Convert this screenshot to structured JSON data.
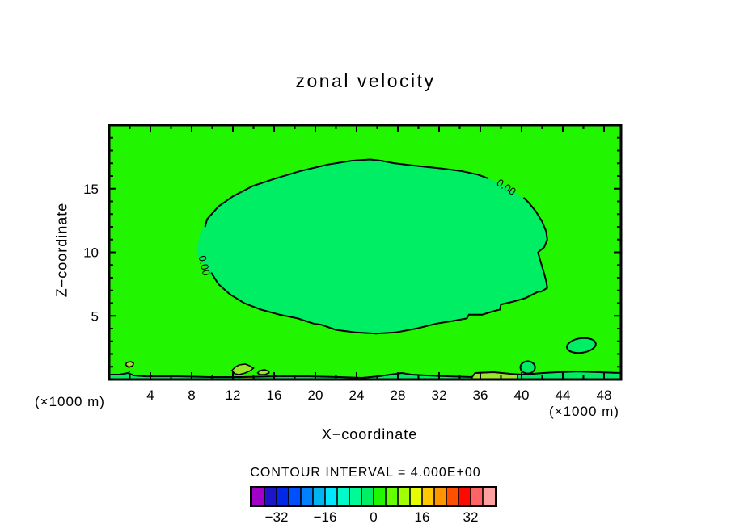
{
  "figure": {
    "title": "zonal velocity",
    "xlabel": "X−coordinate",
    "ylabel": "Z−coordinate",
    "units_left": "(×1000 m)",
    "units_right": "(×1000 m)",
    "contour_interval_label": "CONTOUR INTERVAL = 4.000E+00"
  },
  "chart_data": {
    "type": "heatmap",
    "subtype": "filled-contour-map",
    "title": "zonal velocity",
    "xlabel": "X−coordinate",
    "ylabel": "Z−coordinate",
    "x_units": "(×1000 m)",
    "y_units": "(×1000 m)",
    "x_range": [
      0,
      49.65
    ],
    "y_range": [
      0,
      20
    ],
    "x_ticks_major": [
      4,
      8,
      12,
      16,
      20,
      24,
      28,
      32,
      36,
      40,
      44,
      48
    ],
    "x_ticks_minor": [
      2,
      6,
      10,
      14,
      18,
      22,
      26,
      30,
      34,
      38,
      42,
      46
    ],
    "y_ticks_major": [
      5,
      10,
      15
    ],
    "y_ticks_minor": [
      1,
      2,
      3,
      4,
      6,
      7,
      8,
      9,
      11,
      12,
      13,
      14,
      16,
      17,
      18,
      19
    ],
    "contour_interval": 4.0,
    "contour_label": "0.00",
    "colors": {
      "outer_region": "#22F500",
      "inner_region": "#00EE64",
      "patch_region": "#9CE62C",
      "contour_line": "#000000",
      "text": "#000000"
    },
    "zero_contour_fill": [
      [
        8.5,
        10.2
      ],
      [
        8.8,
        11.4
      ],
      [
        9.5,
        12.6
      ],
      [
        10.6,
        13.6
      ],
      [
        12.0,
        14.4
      ],
      [
        13.9,
        15.2
      ],
      [
        16.1,
        15.8
      ],
      [
        18.6,
        16.4
      ],
      [
        21.2,
        16.9
      ],
      [
        23.5,
        17.2
      ],
      [
        25.3,
        17.3
      ],
      [
        26.4,
        17.2
      ],
      [
        27.7,
        17.0
      ],
      [
        29.8,
        16.8
      ],
      [
        32.2,
        16.6
      ],
      [
        34.1,
        16.4
      ],
      [
        35.8,
        16.1
      ],
      [
        37.1,
        15.7
      ],
      [
        38.4,
        15.2
      ],
      [
        39.7,
        14.5
      ],
      [
        40.7,
        13.9
      ],
      [
        41.4,
        13.2
      ],
      [
        42.0,
        12.4
      ],
      [
        42.4,
        11.6
      ],
      [
        42.5,
        11.0
      ],
      [
        42.2,
        10.4
      ],
      [
        41.6,
        10.0
      ],
      [
        41.8,
        9.4
      ],
      [
        42.1,
        8.6
      ],
      [
        42.4,
        7.7
      ],
      [
        42.5,
        7.2
      ],
      [
        41.9,
        6.9
      ],
      [
        41.6,
        6.9
      ],
      [
        40.4,
        6.4
      ],
      [
        39.1,
        6.1
      ],
      [
        38.0,
        5.9
      ],
      [
        37.9,
        5.5
      ],
      [
        37.0,
        5.3
      ],
      [
        36.2,
        5.1
      ],
      [
        34.9,
        5.1
      ],
      [
        34.7,
        4.8
      ],
      [
        33.3,
        4.6
      ],
      [
        31.8,
        4.4
      ],
      [
        29.8,
        4.0
      ],
      [
        27.8,
        3.7
      ],
      [
        25.9,
        3.6
      ],
      [
        23.9,
        3.7
      ],
      [
        22.0,
        3.9
      ],
      [
        20.6,
        4.3
      ],
      [
        19.8,
        4.4
      ],
      [
        18.3,
        4.8
      ],
      [
        16.5,
        5.1
      ],
      [
        14.7,
        5.5
      ],
      [
        13.1,
        6.0
      ],
      [
        11.7,
        6.7
      ],
      [
        10.6,
        7.5
      ],
      [
        9.7,
        8.3
      ],
      [
        9.1,
        9.1
      ],
      [
        8.6,
        9.7
      ]
    ],
    "zero_contour_stroke_top": [
      [
        9.3,
        12.0
      ],
      [
        9.5,
        12.6
      ],
      [
        10.6,
        13.6
      ],
      [
        12.0,
        14.4
      ],
      [
        13.9,
        15.2
      ],
      [
        16.1,
        15.8
      ],
      [
        18.6,
        16.4
      ],
      [
        21.2,
        16.9
      ],
      [
        23.5,
        17.2
      ],
      [
        25.3,
        17.3
      ],
      [
        26.4,
        17.2
      ],
      [
        27.7,
        17.0
      ],
      [
        29.8,
        16.8
      ],
      [
        32.2,
        16.6
      ],
      [
        34.1,
        16.4
      ],
      [
        35.8,
        16.1
      ],
      [
        36.8,
        15.8
      ]
    ],
    "zero_contour_stroke_bottom": [
      [
        40.2,
        14.3
      ],
      [
        40.7,
        13.9
      ],
      [
        41.4,
        13.2
      ],
      [
        42.0,
        12.4
      ],
      [
        42.4,
        11.6
      ],
      [
        42.5,
        11.0
      ],
      [
        42.2,
        10.4
      ],
      [
        41.6,
        10.0
      ],
      [
        41.8,
        9.4
      ],
      [
        42.1,
        8.6
      ],
      [
        42.4,
        7.7
      ],
      [
        42.5,
        7.2
      ],
      [
        41.9,
        6.9
      ],
      [
        41.6,
        6.9
      ],
      [
        40.4,
        6.4
      ],
      [
        39.1,
        6.1
      ],
      [
        38.0,
        5.9
      ],
      [
        37.9,
        5.5
      ],
      [
        37.0,
        5.3
      ],
      [
        36.2,
        5.1
      ],
      [
        34.9,
        5.1
      ],
      [
        34.7,
        4.8
      ],
      [
        33.3,
        4.6
      ],
      [
        31.8,
        4.4
      ],
      [
        29.8,
        4.0
      ],
      [
        27.8,
        3.7
      ],
      [
        25.9,
        3.6
      ],
      [
        23.9,
        3.7
      ],
      [
        22.0,
        3.9
      ],
      [
        20.6,
        4.3
      ],
      [
        19.8,
        4.4
      ],
      [
        18.3,
        4.8
      ],
      [
        16.5,
        5.1
      ],
      [
        14.7,
        5.5
      ],
      [
        13.1,
        6.0
      ],
      [
        11.7,
        6.7
      ],
      [
        10.6,
        7.5
      ],
      [
        9.9,
        8.4
      ]
    ],
    "contour_line_labels": [
      {
        "x": 9.2,
        "z": 8.95,
        "rotation_deg": 77
      },
      {
        "x": 38.5,
        "z": 15.1,
        "rotation_deg": 34
      }
    ],
    "surface_line": [
      [
        0,
        0.38
      ],
      [
        1.0,
        0.38
      ],
      [
        1.8,
        0.51
      ],
      [
        2.4,
        0.32
      ],
      [
        3.5,
        0.25
      ],
      [
        6.7,
        0.25
      ],
      [
        9.8,
        0.19
      ],
      [
        12.9,
        0.19
      ],
      [
        16.1,
        0.25
      ],
      [
        19.2,
        0.25
      ],
      [
        22.4,
        0.19
      ],
      [
        24.5,
        0.13
      ],
      [
        26.1,
        0.25
      ],
      [
        28.4,
        0.51
      ],
      [
        29.3,
        0.38
      ],
      [
        30.8,
        0.32
      ],
      [
        33.0,
        0.25
      ],
      [
        35.2,
        0.19
      ],
      [
        35.5,
        0.51
      ],
      [
        37.3,
        0.57
      ],
      [
        39.0,
        0.44
      ],
      [
        40.0,
        0.38
      ],
      [
        41.0,
        0.44
      ],
      [
        42.1,
        0.51
      ],
      [
        43.5,
        0.57
      ],
      [
        45.5,
        0.63
      ],
      [
        47.5,
        0.57
      ],
      [
        49.65,
        0.51
      ]
    ],
    "surface_patch_yellow": [
      [
        35.2,
        0.19
      ],
      [
        35.5,
        0.51
      ],
      [
        37.3,
        0.57
      ],
      [
        39.0,
        0.44
      ],
      [
        39.6,
        0.38
      ],
      [
        39.6,
        0
      ],
      [
        35.2,
        0
      ]
    ],
    "surface_strip_yellow": [
      [
        12.9,
        0.24
      ],
      [
        14.0,
        0.24
      ],
      [
        14.0,
        0
      ],
      [
        12.9,
        0
      ]
    ],
    "small_blobs_yellow": [
      [
        [
          11.9,
          0.7
        ],
        [
          12.2,
          0.95
        ],
        [
          12.6,
          1.14
        ],
        [
          13.2,
          1.21
        ],
        [
          13.6,
          1.08
        ],
        [
          14.0,
          0.89
        ],
        [
          13.7,
          0.7
        ],
        [
          13.2,
          0.51
        ],
        [
          12.6,
          0.38
        ],
        [
          12.2,
          0.44
        ]
      ],
      [
        [
          14.4,
          0.51
        ],
        [
          14.6,
          0.7
        ],
        [
          15.1,
          0.76
        ],
        [
          15.5,
          0.63
        ],
        [
          15.5,
          0.51
        ],
        [
          15.1,
          0.38
        ],
        [
          14.6,
          0.38
        ]
      ],
      [
        [
          1.6,
          1.14
        ],
        [
          1.7,
          1.33
        ],
        [
          2.1,
          1.4
        ],
        [
          2.35,
          1.27
        ],
        [
          2.3,
          1.08
        ],
        [
          1.9,
          0.95
        ]
      ]
    ],
    "small_mark_black": [
      [
        1.8,
        0.7
      ],
      [
        2.1,
        0.7
      ],
      [
        1.96,
        0.51
      ]
    ],
    "closed_ellipses_inner": [
      {
        "cx": 45.8,
        "cz": 2.67,
        "rx": 1.41,
        "rz": 0.57,
        "rot": -8
      },
      {
        "cx": 40.6,
        "cz": 0.95,
        "rx": 0.71,
        "rz": 0.48,
        "rot": 0
      }
    ],
    "colorbar": {
      "cell_colors": [
        "#A000C8",
        "#1E14C8",
        "#0028E6",
        "#0050FF",
        "#0082FF",
        "#00B4F0",
        "#00E6FF",
        "#00FAC8",
        "#00FA96",
        "#00EE64",
        "#22F500",
        "#64FF00",
        "#A0FF00",
        "#E6FF00",
        "#FFC800",
        "#FF9600",
        "#FF5000",
        "#FF0A00",
        "#FF6464",
        "#FFA0A0"
      ],
      "value_min": -40,
      "value_max": 40,
      "tick_labels": [
        "−32",
        "−16",
        "0",
        "16",
        "32"
      ],
      "tick_cell_boundaries": [
        2,
        6,
        10,
        14,
        18
      ]
    },
    "legend_position": "bottom",
    "grid": false
  }
}
